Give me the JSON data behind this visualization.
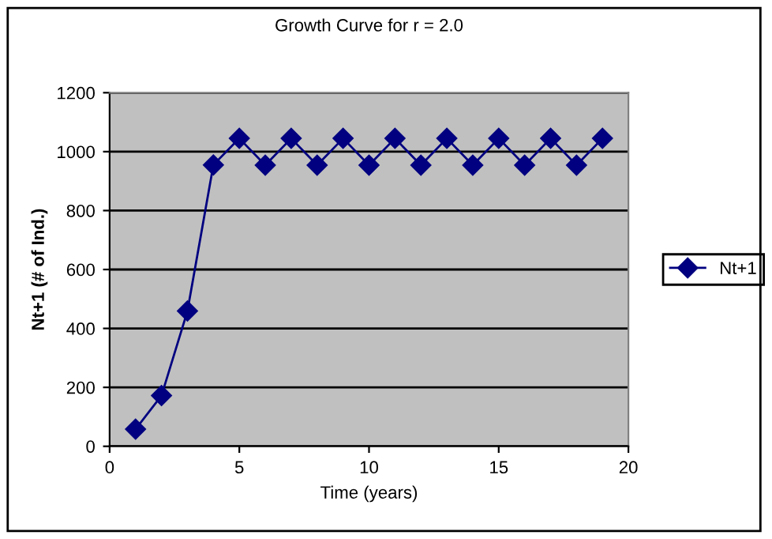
{
  "chart_data": {
    "type": "line",
    "title": "Growth Curve for r = 2.0",
    "xlabel": "Time (years)",
    "ylabel": "Nt+1 (# of Ind.)",
    "series": [
      {
        "name": "Nt+1",
        "color": "#000080",
        "x": [
          1,
          2,
          3,
          4,
          5,
          6,
          7,
          8,
          9,
          10,
          11,
          12,
          13,
          14,
          15,
          16,
          17,
          18,
          19
        ],
        "values": [
          58,
          172,
          459,
          955,
          1045,
          954,
          1045,
          954,
          1045,
          954,
          1045,
          954,
          1045,
          954,
          1045,
          954,
          1045,
          954,
          1045
        ]
      }
    ],
    "xlim": [
      0,
      20
    ],
    "xticks": [
      0,
      5,
      10,
      15,
      20
    ],
    "ylim": [
      0,
      1200
    ],
    "yticks": [
      0,
      200,
      400,
      600,
      800,
      1000,
      1200
    ],
    "grid": "y",
    "legend": "right",
    "marker": "diamond",
    "line_style": "solid"
  }
}
